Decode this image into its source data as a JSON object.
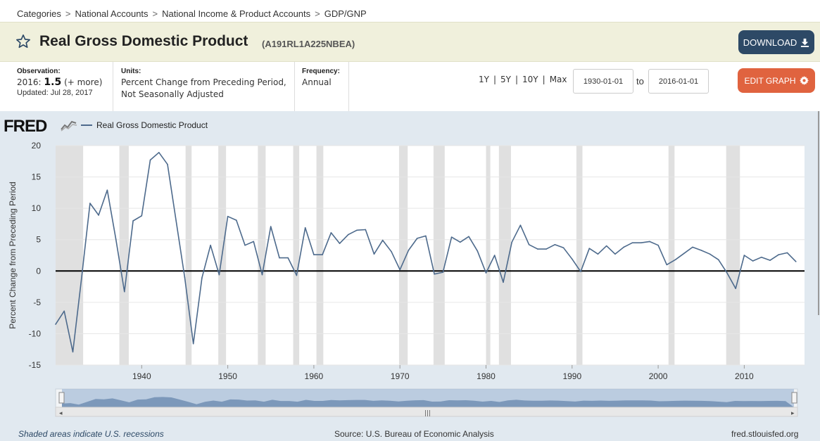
{
  "breadcrumb": [
    "Categories",
    "National Accounts",
    "National Income & Product Accounts",
    "GDP/GNP"
  ],
  "breadcrumb_separator": ">",
  "series": {
    "title": "Real Gross Domestic Product",
    "id": "(A191RL1A225NBEA)"
  },
  "download_label": "DOWNLOAD",
  "observation": {
    "label": "Observation:",
    "year": "2016:",
    "value": "1.5",
    "more": "(+ more)",
    "updated": "Updated: Jul 28, 2017"
  },
  "units": {
    "label": "Units:",
    "line1": "Percent Change from Preceding Period,",
    "line2": "Not Seasonally Adjusted"
  },
  "frequency": {
    "label": "Frequency:",
    "value": "Annual"
  },
  "range_links": [
    "1Y",
    "5Y",
    "10Y",
    "Max"
  ],
  "range_separator": "|",
  "date_from": "1930-01-01",
  "date_to_label": "to",
  "date_to": "2016-01-01",
  "edit_graph_label": "EDIT GRAPH",
  "logo": "FRED",
  "footer": {
    "recessions": "Shaded areas indicate U.S. recessions",
    "source": "Source: U.S. Bureau of Economic Analysis",
    "site": "fred.stlouisfed.org"
  },
  "colors": {
    "line": "#4d6a8c",
    "recession": "#e0e0e0",
    "download_button": "#2d4966",
    "edit_button": "#e0633f",
    "title_bar": "#f0f0dc",
    "panel": "#e1e9f0"
  },
  "icons": {
    "star": "star-icon",
    "download": "download-icon",
    "edit": "gear-icon",
    "logo_chart": "chart-line-icon"
  },
  "chart_data": {
    "type": "line",
    "ylabel": "Percent Change from Preceding Period",
    "xlabel": "",
    "ylim": [
      -15,
      20
    ],
    "xlim": [
      1930,
      2017
    ],
    "yticks": [
      -15,
      -10,
      -5,
      0,
      5,
      10,
      15,
      20
    ],
    "xticks": [
      1940,
      1950,
      1960,
      1970,
      1980,
      1990,
      2000,
      2010
    ],
    "grid": true,
    "legend": "top-left",
    "zero_line": true,
    "series": [
      {
        "name": "Real Gross Domestic Product",
        "x": [
          1930,
          1931,
          1932,
          1933,
          1934,
          1935,
          1936,
          1937,
          1938,
          1939,
          1940,
          1941,
          1942,
          1943,
          1944,
          1945,
          1946,
          1947,
          1948,
          1949,
          1950,
          1951,
          1952,
          1953,
          1954,
          1955,
          1956,
          1957,
          1958,
          1959,
          1960,
          1961,
          1962,
          1963,
          1964,
          1965,
          1966,
          1967,
          1968,
          1969,
          1970,
          1971,
          1972,
          1973,
          1974,
          1975,
          1976,
          1977,
          1978,
          1979,
          1980,
          1981,
          1982,
          1983,
          1984,
          1985,
          1986,
          1987,
          1988,
          1989,
          1990,
          1991,
          1992,
          1993,
          1994,
          1995,
          1996,
          1997,
          1998,
          1999,
          2000,
          2001,
          2002,
          2003,
          2004,
          2005,
          2006,
          2007,
          2008,
          2009,
          2010,
          2011,
          2012,
          2013,
          2014,
          2015,
          2016
        ],
        "values": [
          -8.5,
          -6.4,
          -12.9,
          -1.3,
          10.8,
          8.9,
          12.9,
          5.1,
          -3.3,
          8.0,
          8.8,
          17.7,
          18.9,
          17.0,
          8.0,
          -1.0,
          -11.6,
          -1.1,
          4.1,
          -0.6,
          8.7,
          8.1,
          4.1,
          4.7,
          -0.6,
          7.1,
          2.1,
          2.1,
          -0.7,
          6.9,
          2.6,
          2.6,
          6.1,
          4.4,
          5.8,
          6.5,
          6.6,
          2.7,
          4.9,
          3.1,
          0.2,
          3.3,
          5.2,
          5.6,
          -0.5,
          -0.2,
          5.4,
          4.6,
          5.5,
          3.2,
          -0.3,
          2.5,
          -1.8,
          4.6,
          7.3,
          4.2,
          3.5,
          3.5,
          4.2,
          3.7,
          1.9,
          -0.1,
          3.6,
          2.7,
          4.0,
          2.7,
          3.8,
          4.5,
          4.5,
          4.7,
          4.1,
          1.0,
          1.8,
          2.8,
          3.8,
          3.3,
          2.7,
          1.8,
          -0.3,
          -2.8,
          2.5,
          1.6,
          2.2,
          1.7,
          2.6,
          2.9,
          1.5
        ]
      }
    ],
    "recessions": [
      [
        1929.6,
        1933.2
      ],
      [
        1937.4,
        1938.5
      ],
      [
        1945.1,
        1945.8
      ],
      [
        1948.9,
        1949.8
      ],
      [
        1953.5,
        1954.4
      ],
      [
        1957.6,
        1958.3
      ],
      [
        1960.3,
        1961.1
      ],
      [
        1969.9,
        1970.9
      ],
      [
        1973.9,
        1975.2
      ],
      [
        1980.0,
        1980.5
      ],
      [
        1981.5,
        1982.9
      ],
      [
        1990.5,
        1991.2
      ],
      [
        2001.2,
        2001.9
      ],
      [
        2007.9,
        2009.5
      ]
    ]
  }
}
